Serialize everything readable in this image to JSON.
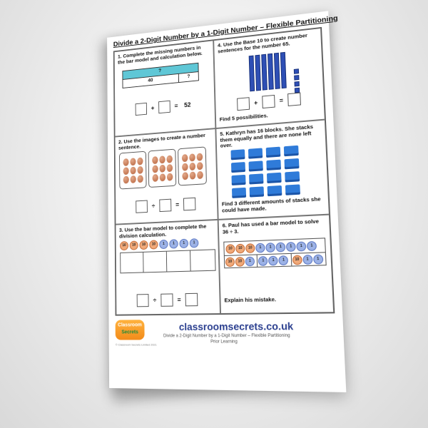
{
  "title": "Divide a 2-Digit Number by a 1-Digit Number – Flexible Partitioning",
  "q1": {
    "text": "1. Complete the missing numbers in the bar model and calculation below.",
    "bar_top": "?",
    "bar_left": "40",
    "bar_right": "?",
    "op": "+",
    "eq": "=",
    "result": "52"
  },
  "q4": {
    "text": "4. Use the Base 10 to create number sentences for the number 65.",
    "op": "+",
    "eq": "=",
    "footer": "Find 5 possibilities.",
    "tens_count": 6,
    "ones_count": 5
  },
  "q2": {
    "text": "2. Use the images to create a number sentence.",
    "op": "÷",
    "eq": "=",
    "groups": [
      9,
      9,
      9
    ]
  },
  "q5": {
    "text": "5. Kathryn has 16 blocks. She stacks them equally and there are none left over.",
    "footer": "Find 3 different amounts of stacks she could have made.",
    "blocks": 16
  },
  "q3": {
    "text": "3. Use the bar model to complete the division calculation.",
    "counters": [
      "10",
      "10",
      "10",
      "10",
      "1",
      "1",
      "1",
      "1"
    ],
    "op": "÷",
    "eq": "="
  },
  "q6": {
    "text": "6. Paul has used a bar model to solve 36 ÷ 3.",
    "row1": [
      "10",
      "10",
      "10",
      "1",
      "1",
      "1",
      "1",
      "1",
      "1"
    ],
    "group1": [
      "10",
      "10",
      "1"
    ],
    "group2": [
      "1",
      "1",
      "1"
    ],
    "group3": [
      "10",
      "1",
      "1"
    ],
    "footer": "Explain his mistake."
  },
  "footer": {
    "logo_top": "Classroom",
    "logo_bottom": "Secrets",
    "site": "classroomsecrets.co.uk",
    "subtitle": "Divide a 2-Digit Number by a 1-Digit Number – Flexible Partitioning",
    "subtitle2": "Prior Learning",
    "copyright": "© Classroom Secrets Limited 2021"
  },
  "colors": {
    "bar_top": "#5fc7d6",
    "base10": "#2e4fb5",
    "balloon": "#c77450",
    "block": "#2f7bd9",
    "counter_ten": "#f0a979",
    "counter_one": "#9cb2e6",
    "logo": "#f28b1a",
    "site": "#2b3f8f"
  }
}
